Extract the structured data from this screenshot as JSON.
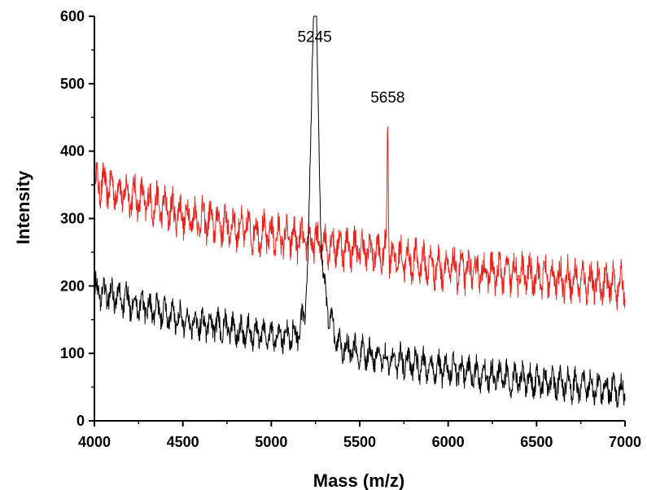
{
  "chart_data": {
    "type": "line",
    "title": "",
    "xlabel": "Mass (m/z)",
    "ylabel": "Intensity",
    "xlim": [
      4000,
      7000
    ],
    "ylim": [
      0,
      600
    ],
    "x_ticks": [
      4000,
      4500,
      5000,
      5500,
      6000,
      6500,
      7000
    ],
    "y_ticks": [
      0,
      100,
      200,
      300,
      400,
      500,
      600
    ],
    "grid": false,
    "legend": "none",
    "annotations": [
      {
        "text": "5245",
        "x": 5245,
        "y": 550
      },
      {
        "text": "5658",
        "x": 5658,
        "y": 460
      }
    ],
    "series": [
      {
        "color": "#e8231e",
        "baseline": [
          [
            4000,
            355
          ],
          [
            4500,
            305
          ],
          [
            5000,
            275
          ],
          [
            5500,
            255
          ],
          [
            6000,
            225
          ],
          [
            6500,
            215
          ],
          [
            7000,
            200
          ]
        ],
        "noise_amplitude": 35,
        "peaks": [
          {
            "x": 5658,
            "y": 460
          }
        ]
      },
      {
        "color": "#000000",
        "baseline": [
          [
            4000,
            195
          ],
          [
            4500,
            150
          ],
          [
            5000,
            125
          ],
          [
            5200,
            128
          ],
          [
            5500,
            100
          ],
          [
            6000,
            75
          ],
          [
            6500,
            58
          ],
          [
            7000,
            45
          ]
        ],
        "noise_amplitude": 30,
        "peaks": [
          {
            "x": 5245,
            "y": 550
          }
        ]
      }
    ]
  }
}
